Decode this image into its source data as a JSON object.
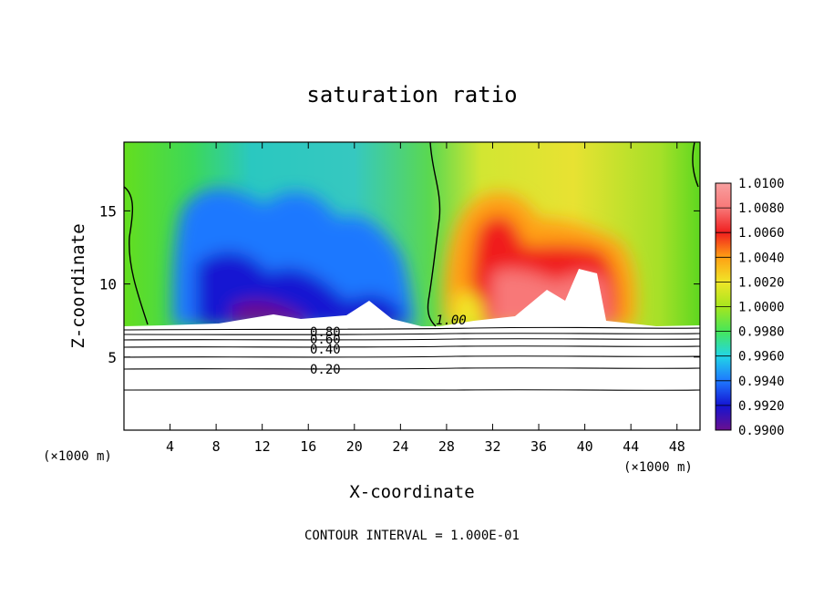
{
  "chart_data": {
    "type": "heatmap",
    "title": "saturation ratio",
    "xlabel": "X-coordinate",
    "ylabel": "Z-coordinate",
    "x_unit_left": "(×1000 m)",
    "x_unit_right": "(×1000 m)",
    "footer": "CONTOUR INTERVAL = 1.000E-01",
    "xlim": [
      0,
      50
    ],
    "ylim": [
      0,
      19.7
    ],
    "x_ticks": [
      4,
      8,
      12,
      16,
      20,
      24,
      28,
      32,
      36,
      40,
      44,
      48
    ],
    "y_ticks": [
      5,
      10,
      15
    ],
    "colorbar": {
      "levels": [
        "0.9900",
        "0.9920",
        "0.9940",
        "0.9960",
        "0.9980",
        "1.0000",
        "1.0020",
        "1.0040",
        "1.0060",
        "1.0080",
        "1.0100"
      ],
      "colors": [
        "#6a0f8e",
        "#1414d2",
        "#1e78ff",
        "#22d6e6",
        "#46e65a",
        "#a6e61e",
        "#f0e628",
        "#ffa014",
        "#f01e1e",
        "#f87878"
      ]
    },
    "contour_labels": [
      "0.80",
      "0.60",
      "0.40",
      "0.20",
      "1.00"
    ]
  }
}
